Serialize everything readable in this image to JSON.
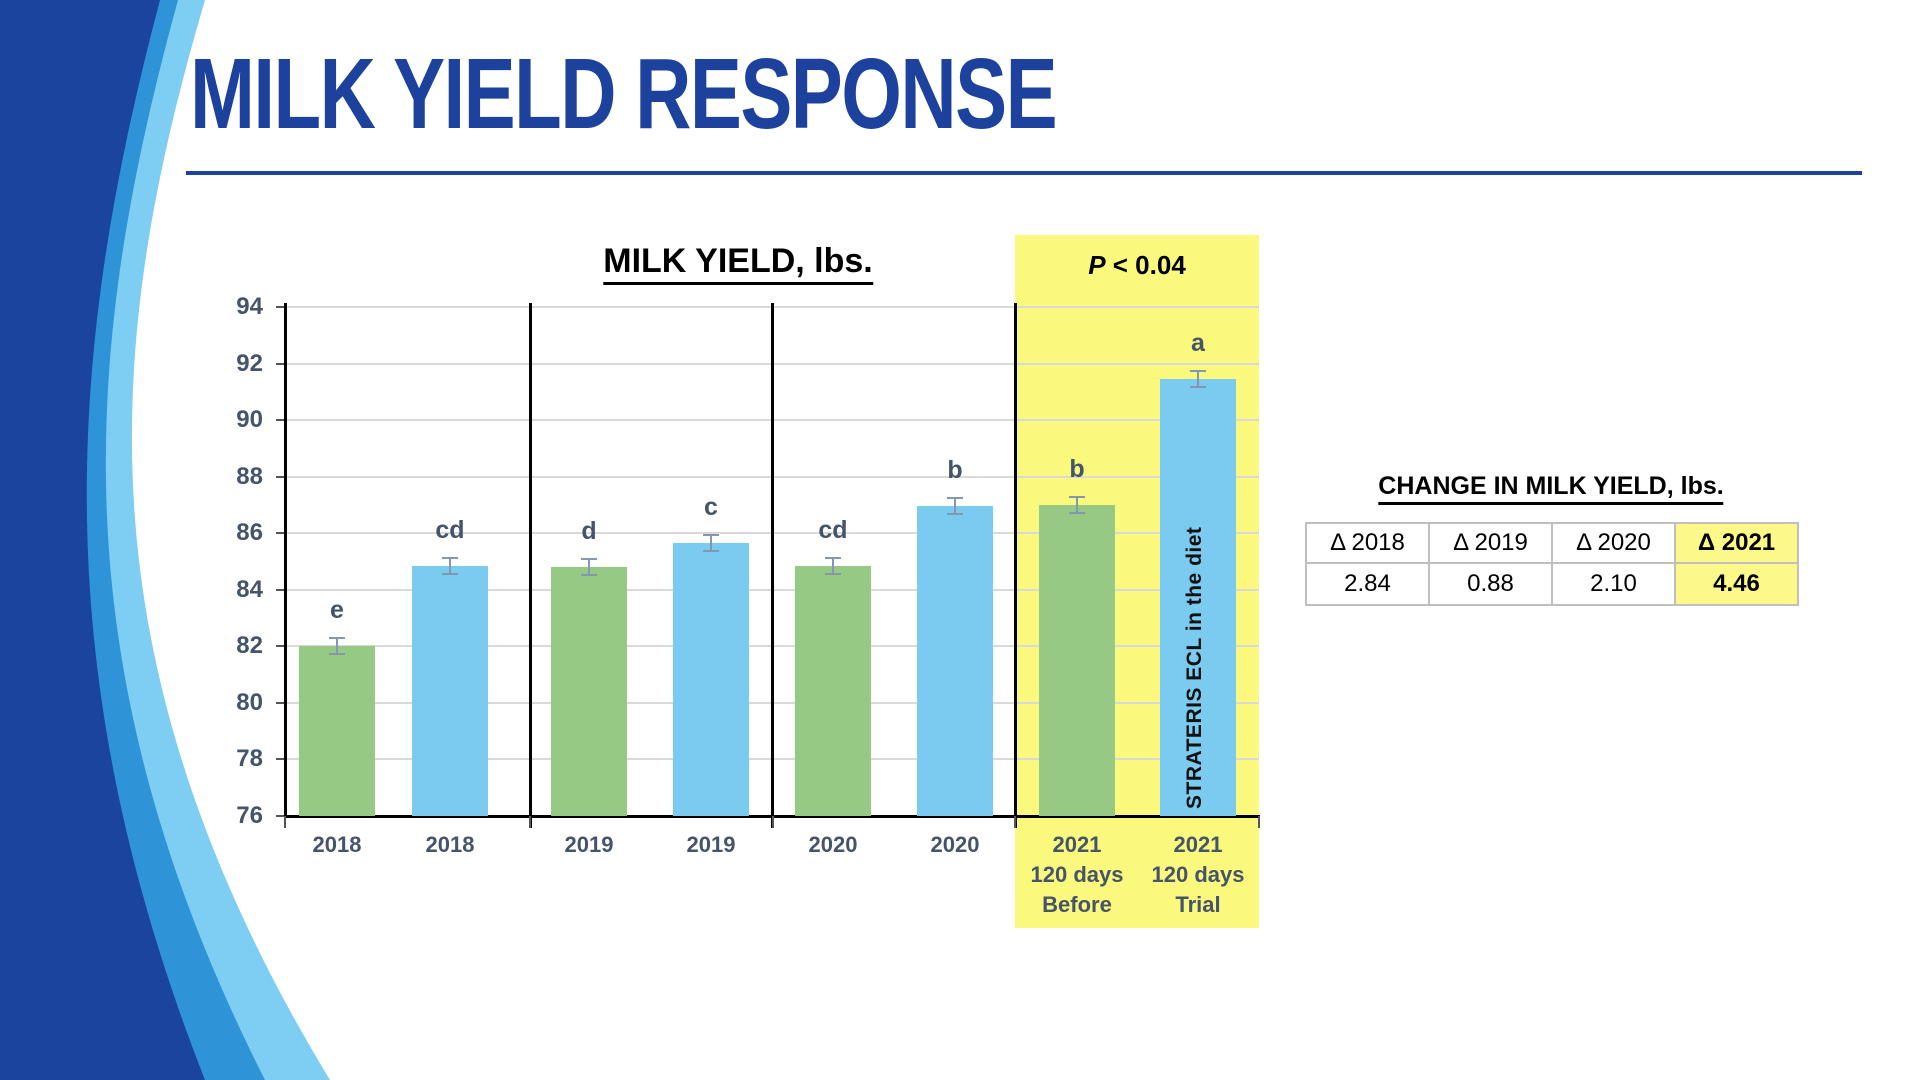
{
  "slide": {
    "title": "MILK YIELD RESPONSE"
  },
  "chart": {
    "title": "MILK YIELD, lbs.",
    "p_value": {
      "prefix": "P",
      "rest": " < 0.04"
    },
    "bar_note": "STRATERIS ECL in the diet",
    "colors": {
      "before": "#96C983",
      "trial": "#7BCBF0",
      "highlight_band": "#FBF87E",
      "axis_text": "#44546A",
      "error_bar": "#8497B0",
      "title_blue": "#1C429E"
    }
  },
  "table": {
    "title": "CHANGE IN MILK YIELD, lbs.",
    "headers": [
      "Δ 2018",
      "Δ 2019",
      "Δ 2020",
      "Δ 2021"
    ],
    "values": [
      "2.84",
      "0.88",
      "2.10",
      "4.46"
    ],
    "highlight_col": 3
  },
  "chart_data": [
    {
      "type": "bar",
      "title": "MILK YIELD, lbs.",
      "xlabel": "",
      "ylabel": "",
      "ylim": [
        76,
        94
      ],
      "y_ticks": [
        94,
        92,
        90,
        88,
        86,
        84,
        82,
        80,
        78,
        76
      ],
      "grid": true,
      "categories": [
        "2018",
        "2018",
        "2019",
        "2019",
        "2020",
        "2020",
        "2021 120 days Before",
        "2021 120 days Trial"
      ],
      "category_lines": [
        [
          "2018"
        ],
        [
          "2018"
        ],
        [
          "2019"
        ],
        [
          "2019"
        ],
        [
          "2020"
        ],
        [
          "2020"
        ],
        [
          "2021",
          "120 days",
          "Before"
        ],
        [
          "2021",
          "120 days",
          "Trial"
        ]
      ],
      "values": [
        82.01,
        84.85,
        84.79,
        85.67,
        84.85,
        86.95,
        86.99,
        91.45
      ],
      "series_keys": [
        "before",
        "trial",
        "before",
        "trial",
        "before",
        "trial",
        "before",
        "trial"
      ],
      "significance_letters": [
        "e",
        "cd",
        "d",
        "c",
        "cd",
        "b",
        "b",
        "a"
      ],
      "error_bar_half_value": 0.3,
      "annotation": "P < 0.04",
      "highlighted_category_indices": [
        6,
        7
      ],
      "highlight_note": "STRATERIS ECL in the diet",
      "group_dividers_after_index": [
        1,
        3,
        5
      ]
    },
    {
      "type": "table",
      "title": "CHANGE IN MILK YIELD, lbs.",
      "columns": [
        "Δ 2018",
        "Δ 2019",
        "Δ 2020",
        "Δ 2021"
      ],
      "rows": [
        [
          2.84,
          0.88,
          2.1,
          4.46
        ]
      ],
      "highlighted_column": "Δ 2021"
    }
  ]
}
